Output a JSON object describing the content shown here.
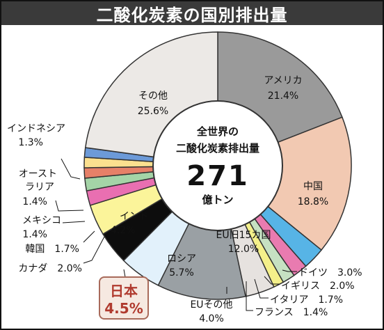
{
  "title": "二酸化炭素の国別排出量",
  "chart_data": {
    "type": "pie",
    "title": "二酸化炭素の国別排出量",
    "center": {
      "line1": "全世界の",
      "line2": "二酸化炭素排出量",
      "total": "271",
      "unit": "億トン"
    },
    "slices": [
      {
        "name": "アメリカ",
        "value": 21.4,
        "pct": "21.4%",
        "color": "#9a9a9a"
      },
      {
        "name": "中国",
        "value": 18.8,
        "pct": "18.8%",
        "color": "#f2c9b2"
      },
      {
        "name": "ドイツ",
        "value": 3.0,
        "pct": "3.0%",
        "color": "#57b4e6"
      },
      {
        "name": "イギリス",
        "value": 2.0,
        "pct": "2.0%",
        "color": "#e97bb0"
      },
      {
        "name": "イタリア",
        "value": 1.7,
        "pct": "1.7%",
        "color": "#c6e1c2"
      },
      {
        "name": "フランス",
        "value": 1.4,
        "pct": "1.4%",
        "color": "#f4f08a"
      },
      {
        "name": "EUその他",
        "value": 4.0,
        "pct": "4.0%",
        "color": "#e6e2df"
      },
      {
        "name": "EU旧15カ国",
        "value": 12.0,
        "pct": "12.0%",
        "color": "#9aa0a4"
      },
      {
        "name": "ロシア",
        "value": 5.7,
        "pct": "5.7%",
        "color": "#e2f1fb"
      },
      {
        "name": "日本",
        "value": 4.5,
        "pct": "4.5%",
        "color": "#0d0d0d"
      },
      {
        "name": "インド",
        "value": 4.2,
        "pct": "4.2%",
        "color": "#fbf49a"
      },
      {
        "name": "カナダ",
        "value": 2.0,
        "pct": "2.0%",
        "color": "#e96fb1"
      },
      {
        "name": "韓国",
        "value": 1.7,
        "pct": "1.7%",
        "color": "#a4d4a7"
      },
      {
        "name": "メキシコ",
        "value": 1.4,
        "pct": "1.4%",
        "color": "#e68068"
      },
      {
        "name": "オーストラリア",
        "value": 1.4,
        "pct": "1.4%",
        "color": "#fbe08f"
      },
      {
        "name": "インドネシア",
        "value": 1.3,
        "pct": "1.3%",
        "color": "#6c9ad8"
      },
      {
        "name": "その他",
        "value": 25.6,
        "pct": "25.6%",
        "color": "#ece9e6"
      }
    ],
    "labels": [
      {
        "name": "アメリカ",
        "line1": "アメリカ",
        "line2": "21.4%"
      },
      {
        "name": "中国",
        "line1": "中国",
        "line2": "18.8%"
      },
      {
        "name": "ドイツ",
        "line1": "ドイツ　3.0%"
      },
      {
        "name": "イギリス",
        "line1": "イギリス　2.0%"
      },
      {
        "name": "イタリア",
        "line1": "イタリア　1.7%"
      },
      {
        "name": "フランス",
        "line1": "フランス　1.4%"
      },
      {
        "name": "EUその他",
        "line1": "EUその他",
        "line2": "4.0%"
      },
      {
        "name": "EU旧15カ国",
        "line1": "EU旧15カ国",
        "line2": "12.0%"
      },
      {
        "name": "ロシア",
        "line1": "ロシア",
        "line2": "5.7%"
      },
      {
        "name": "日本",
        "line1": "日本",
        "line2": "4.5%"
      },
      {
        "name": "インド",
        "line1": "インド",
        "line2": "4.2%"
      },
      {
        "name": "カナダ",
        "line1": "カナダ　2.0%"
      },
      {
        "name": "韓国",
        "line1": "韓国　1.7%"
      },
      {
        "name": "メキシコ",
        "line1": "メキシコ",
        "line2": "1.4%"
      },
      {
        "name": "オーストラリア",
        "line1": "オースト",
        "line2": "ラリア",
        "line3": "1.4%"
      },
      {
        "name": "インドネシア",
        "line1": "インドネシア",
        "line2": "1.3%"
      },
      {
        "name": "その他",
        "line1": "その他",
        "line2": "25.6%"
      }
    ]
  }
}
